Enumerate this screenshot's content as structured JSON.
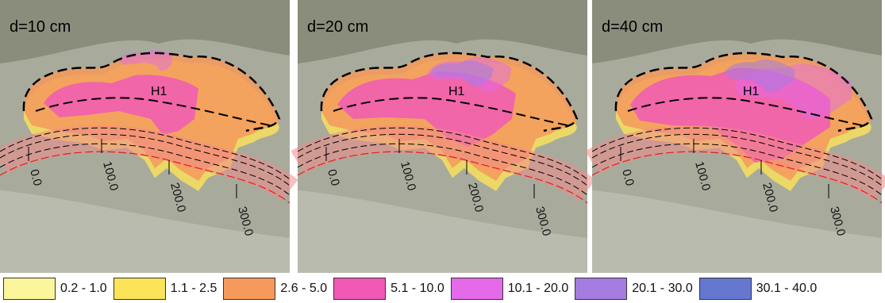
{
  "panels": [
    {
      "label": "d=10 cm",
      "hazard": "H1",
      "chainages": [
        "0.0",
        "100.0",
        "200.0",
        "300.0"
      ]
    },
    {
      "label": "d=20 cm",
      "hazard": "H1",
      "chainages": [
        "0.0",
        "100.0",
        "200.0",
        "300.0"
      ]
    },
    {
      "label": "d=40 cm",
      "hazard": "H1",
      "chainages": [
        "0.0",
        "100.0",
        "200.0",
        "300.0"
      ]
    }
  ],
  "legend": [
    {
      "label": "0.2 - 1.0",
      "color": "#fbf59c"
    },
    {
      "label": "1.1 - 2.5",
      "color": "#fbe45a"
    },
    {
      "label": "2.6 - 5.0",
      "color": "#f59a5c"
    },
    {
      "label": "5.1 - 10.0",
      "color": "#f05ab6"
    },
    {
      "label": "10.1 - 20.0",
      "color": "#e46aea"
    },
    {
      "label": "20.1 - 30.0",
      "color": "#a47ce2"
    },
    {
      "label": "30.1 - 40.0",
      "color": "#6677cf"
    }
  ]
}
